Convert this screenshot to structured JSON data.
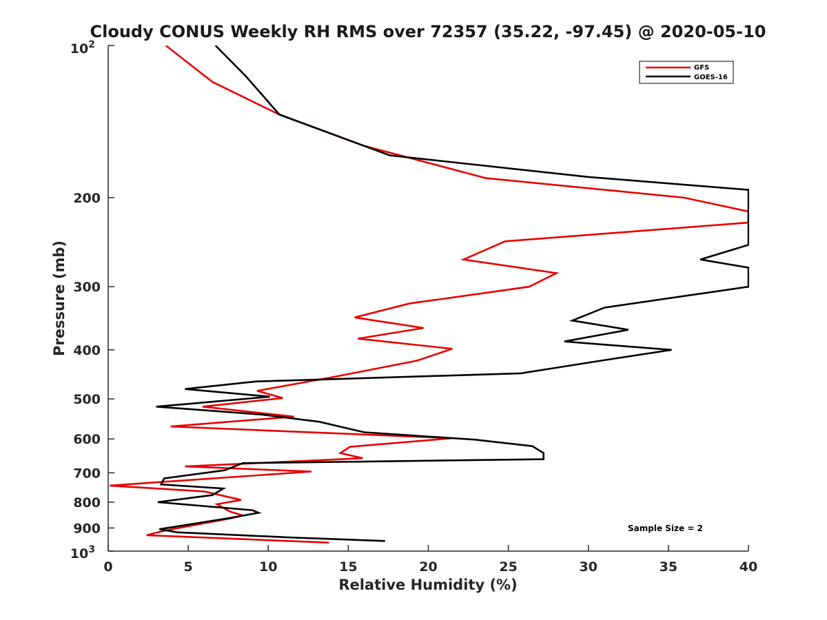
{
  "chart_data": {
    "type": "line",
    "title": "Cloudy CONUS Weekly RH RMS over 72357 (35.22, -97.45) @ 2020-05-10",
    "xlabel": "Relative Humidity (%)",
    "ylabel": "Pressure (mb)",
    "xlim": [
      0,
      40
    ],
    "ylim": [
      100,
      1000
    ],
    "y_scale": "log",
    "y_reversed": true,
    "grid": false,
    "legend_position": "top-right",
    "x_ticks": [
      "0",
      "5",
      "10",
      "15",
      "20",
      "25",
      "30",
      "35",
      "40"
    ],
    "y_ticks": [
      {
        "value": 200,
        "label": "200"
      },
      {
        "value": 300,
        "label": "300"
      },
      {
        "value": 400,
        "label": "400"
      },
      {
        "value": 500,
        "label": "500"
      },
      {
        "value": 600,
        "label": "600"
      },
      {
        "value": 700,
        "label": "700"
      },
      {
        "value": 800,
        "label": "800"
      },
      {
        "value": 900,
        "label": "900"
      }
    ],
    "y_tick_top": {
      "base": "10",
      "exp": "2"
    },
    "y_tick_bottom": {
      "base": "10",
      "exp": "3"
    },
    "annotation": "Sample Size = 2",
    "series": [
      {
        "name": "GFS",
        "color": "#e60000",
        "points": [
          [
            3.6,
            100
          ],
          [
            6.5,
            118
          ],
          [
            10.7,
            137
          ],
          [
            16.0,
            158
          ],
          [
            23.6,
            183
          ],
          [
            36.0,
            200
          ],
          [
            40.0,
            213
          ],
          [
            40.0,
            224
          ],
          [
            24.8,
            244
          ],
          [
            22.2,
            265
          ],
          [
            28.0,
            282
          ],
          [
            26.3,
            300
          ],
          [
            18.8,
            324
          ],
          [
            15.4,
            345
          ],
          [
            19.7,
            362
          ],
          [
            15.6,
            380
          ],
          [
            21.5,
            398
          ],
          [
            19.3,
            420
          ],
          [
            14.0,
            453
          ],
          [
            9.3,
            482
          ],
          [
            10.9,
            498
          ],
          [
            5.9,
            518
          ],
          [
            11.6,
            542
          ],
          [
            3.9,
            567
          ],
          [
            21.5,
            598
          ],
          [
            15.1,
            622
          ],
          [
            14.5,
            640
          ],
          [
            15.9,
            655
          ],
          [
            4.8,
            680
          ],
          [
            12.7,
            696
          ],
          [
            0.1,
            742
          ],
          [
            6.0,
            762
          ],
          [
            8.3,
            792
          ],
          [
            6.8,
            808
          ],
          [
            7.6,
            835
          ],
          [
            8.4,
            850
          ],
          [
            7.6,
            862
          ],
          [
            3.6,
            910
          ],
          [
            2.4,
            930
          ],
          [
            13.8,
            962
          ]
        ]
      },
      {
        "name": "GOES-16",
        "color": "#000000",
        "points": [
          [
            6.7,
            100
          ],
          [
            8.6,
            115
          ],
          [
            10.7,
            137
          ],
          [
            17.6,
            165
          ],
          [
            30.0,
            182
          ],
          [
            40.0,
            193
          ],
          [
            40.0,
            248
          ],
          [
            37.0,
            265
          ],
          [
            40.0,
            275
          ],
          [
            40.0,
            300
          ],
          [
            31.0,
            330
          ],
          [
            29.0,
            350
          ],
          [
            32.5,
            365
          ],
          [
            28.5,
            385
          ],
          [
            35.2,
            400
          ],
          [
            30.8,
            420
          ],
          [
            25.8,
            445
          ],
          [
            9.2,
            462
          ],
          [
            4.8,
            478
          ],
          [
            10.1,
            495
          ],
          [
            3.0,
            518
          ],
          [
            9.6,
            537
          ],
          [
            13.2,
            555
          ],
          [
            16.0,
            582
          ],
          [
            22.9,
            602
          ],
          [
            26.5,
            620
          ],
          [
            27.2,
            640
          ],
          [
            27.2,
            658
          ],
          [
            8.4,
            670
          ],
          [
            7.3,
            692
          ],
          [
            3.5,
            718
          ],
          [
            3.3,
            738
          ],
          [
            7.2,
            752
          ],
          [
            6.5,
            775
          ],
          [
            3.1,
            800
          ],
          [
            9.0,
            830
          ],
          [
            9.4,
            840
          ],
          [
            7.6,
            860
          ],
          [
            3.2,
            905
          ],
          [
            4.3,
            918
          ],
          [
            11.5,
            940
          ],
          [
            17.3,
            955
          ]
        ]
      }
    ]
  }
}
